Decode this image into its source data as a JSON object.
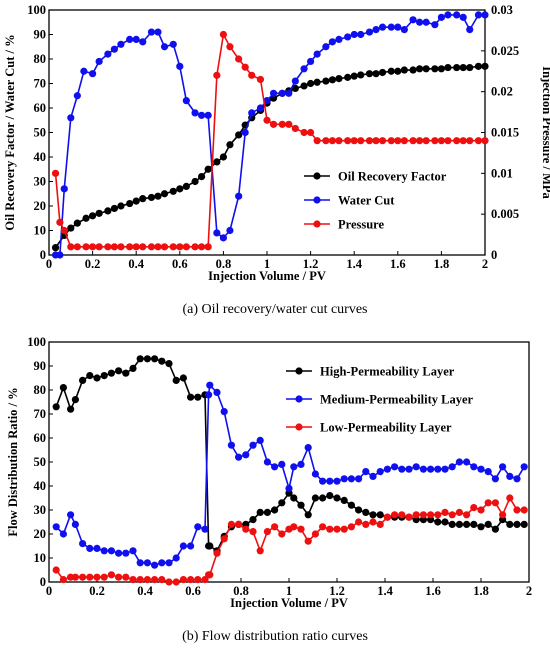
{
  "colors": {
    "black": "#000000",
    "blue": "#1010ee",
    "red": "#ee1010"
  },
  "chart_data": [
    {
      "type": "line",
      "caption": "(a) Oil recovery/water cut curves",
      "xlabel": "Injection Volume / PV",
      "ylabel": "Oil Recovery Factor / Water Cut / %",
      "y2label": "Injection Pressure / MPa",
      "xlim": [
        0,
        2
      ],
      "ylim": [
        0,
        100
      ],
      "y2lim": [
        0,
        0.03
      ],
      "xticks": [
        "0",
        "0.2",
        "0.4",
        "0.6",
        "0.8",
        "1",
        "1.2",
        "1.4",
        "1.6",
        "1.8",
        "2"
      ],
      "yticks": [
        "0",
        "10",
        "20",
        "30",
        "40",
        "50",
        "60",
        "70",
        "80",
        "90",
        "100"
      ],
      "y2ticks": [
        "0",
        "0.005",
        "0.01",
        "0.015",
        "0.02",
        "0.025",
        "0.03"
      ],
      "legend_position": "bottom-right",
      "series": [
        {
          "name": "Oil Recovery Factor",
          "axis": "left",
          "color": "#000000",
          "x": [
            0.03,
            0.07,
            0.1,
            0.13,
            0.17,
            0.2,
            0.23,
            0.27,
            0.3,
            0.33,
            0.37,
            0.4,
            0.43,
            0.47,
            0.5,
            0.53,
            0.57,
            0.6,
            0.63,
            0.67,
            0.7,
            0.73,
            0.77,
            0.8,
            0.83,
            0.87,
            0.9,
            0.93,
            0.97,
            1.0,
            1.03,
            1.07,
            1.1,
            1.13,
            1.17,
            1.2,
            1.23,
            1.27,
            1.3,
            1.33,
            1.37,
            1.4,
            1.43,
            1.47,
            1.5,
            1.53,
            1.57,
            1.6,
            1.63,
            1.67,
            1.7,
            1.73,
            1.77,
            1.8,
            1.83,
            1.87,
            1.9,
            1.93,
            1.97,
            2.0
          ],
          "values": [
            3,
            8,
            11,
            13,
            15,
            16,
            17,
            18,
            19,
            20,
            21,
            22,
            23,
            23.5,
            24,
            25,
            26,
            27,
            28,
            30,
            32,
            35,
            38,
            40,
            45,
            49,
            53,
            56,
            59,
            62,
            64,
            66,
            67,
            68,
            69,
            70,
            70.5,
            71,
            71.5,
            72,
            72.5,
            73,
            73.5,
            74,
            74,
            74.5,
            75,
            75,
            75.5,
            75.5,
            76,
            76,
            76,
            76,
            76.5,
            76.5,
            76.5,
            76.5,
            77,
            77
          ]
        },
        {
          "name": "Water Cut",
          "axis": "left",
          "color": "#1010ee",
          "x": [
            0.03,
            0.05,
            0.07,
            0.1,
            0.13,
            0.16,
            0.2,
            0.23,
            0.27,
            0.3,
            0.33,
            0.37,
            0.4,
            0.43,
            0.47,
            0.5,
            0.53,
            0.57,
            0.6,
            0.63,
            0.67,
            0.7,
            0.73,
            0.77,
            0.8,
            0.83,
            0.87,
            0.9,
            0.93,
            0.97,
            1.0,
            1.03,
            1.07,
            1.1,
            1.13,
            1.17,
            1.2,
            1.23,
            1.27,
            1.3,
            1.33,
            1.37,
            1.4,
            1.43,
            1.47,
            1.5,
            1.53,
            1.57,
            1.6,
            1.63,
            1.67,
            1.7,
            1.73,
            1.77,
            1.8,
            1.83,
            1.87,
            1.9,
            1.93,
            1.97,
            2.0
          ],
          "values": [
            0,
            0,
            27,
            56,
            65,
            75,
            74,
            79,
            82,
            84,
            86,
            88,
            88,
            87,
            91,
            91,
            85,
            86,
            77,
            63,
            58,
            57,
            57,
            9,
            7,
            10,
            24,
            50,
            58,
            60,
            63,
            66,
            66,
            66,
            71,
            76,
            79,
            82,
            85,
            87,
            88,
            89,
            90,
            90,
            91,
            92,
            93,
            93,
            93,
            92,
            96,
            95,
            95,
            94,
            97,
            98,
            98,
            97,
            92,
            98,
            98
          ]
        },
        {
          "name": "Pressure",
          "axis": "right",
          "color": "#ee1010",
          "x": [
            0.03,
            0.05,
            0.07,
            0.1,
            0.13,
            0.17,
            0.2,
            0.23,
            0.27,
            0.3,
            0.33,
            0.37,
            0.4,
            0.43,
            0.47,
            0.5,
            0.53,
            0.57,
            0.6,
            0.63,
            0.67,
            0.7,
            0.73,
            0.77,
            0.8,
            0.83,
            0.87,
            0.9,
            0.93,
            0.97,
            1.0,
            1.03,
            1.07,
            1.1,
            1.13,
            1.17,
            1.2,
            1.23,
            1.27,
            1.3,
            1.33,
            1.37,
            1.4,
            1.43,
            1.47,
            1.5,
            1.53,
            1.57,
            1.6,
            1.63,
            1.67,
            1.7,
            1.73,
            1.77,
            1.8,
            1.83,
            1.87,
            1.9,
            1.93,
            1.97,
            2.0
          ],
          "values": [
            0.01,
            0.004,
            0.003,
            0.001,
            0.001,
            0.001,
            0.001,
            0.001,
            0.001,
            0.001,
            0.001,
            0.001,
            0.001,
            0.001,
            0.001,
            0.001,
            0.001,
            0.001,
            0.001,
            0.001,
            0.001,
            0.001,
            0.001,
            0.022,
            0.027,
            0.0255,
            0.024,
            0.023,
            0.022,
            0.0215,
            0.0165,
            0.016,
            0.016,
            0.016,
            0.0155,
            0.015,
            0.015,
            0.014,
            0.014,
            0.014,
            0.014,
            0.014,
            0.014,
            0.014,
            0.014,
            0.014,
            0.014,
            0.014,
            0.014,
            0.014,
            0.014,
            0.014,
            0.014,
            0.014,
            0.014,
            0.014,
            0.014,
            0.014,
            0.014,
            0.014,
            0.014
          ]
        }
      ]
    },
    {
      "type": "line",
      "caption": "(b) Flow distribution ratio curves",
      "xlabel": "Injection Volume / PV",
      "ylabel": "Flow Distribution Ratio / %",
      "xlim": [
        0,
        2
      ],
      "ylim": [
        0,
        100
      ],
      "xticks": [
        "0",
        "0.2",
        "0.4",
        "0.6",
        "0.8",
        "1",
        "1.2",
        "1.4",
        "1.6",
        "1.8",
        "2"
      ],
      "yticks": [
        "0",
        "10",
        "20",
        "30",
        "40",
        "50",
        "60",
        "70",
        "80",
        "90",
        "100"
      ],
      "legend_position": "top-right",
      "series": [
        {
          "name": "High-Permeability Layer",
          "color": "#000000",
          "x": [
            0.03,
            0.06,
            0.09,
            0.11,
            0.14,
            0.17,
            0.2,
            0.23,
            0.26,
            0.29,
            0.32,
            0.35,
            0.38,
            0.41,
            0.44,
            0.47,
            0.5,
            0.53,
            0.56,
            0.59,
            0.62,
            0.65,
            0.665,
            0.67,
            0.7,
            0.73,
            0.76,
            0.79,
            0.82,
            0.85,
            0.88,
            0.91,
            0.94,
            0.97,
            1.0,
            1.02,
            1.05,
            1.08,
            1.11,
            1.14,
            1.17,
            1.2,
            1.23,
            1.26,
            1.29,
            1.32,
            1.35,
            1.38,
            1.41,
            1.44,
            1.47,
            1.5,
            1.53,
            1.56,
            1.59,
            1.62,
            1.65,
            1.68,
            1.71,
            1.74,
            1.77,
            1.8,
            1.83,
            1.86,
            1.89,
            1.92,
            1.95,
            1.98
          ],
          "values": [
            73,
            81,
            72,
            76,
            84,
            86,
            85,
            86,
            87,
            88,
            87,
            89,
            93,
            93,
            93,
            92,
            91,
            84,
            85,
            77,
            77,
            78,
            15,
            15,
            13,
            19,
            23,
            24,
            24,
            26,
            29,
            29,
            30,
            33,
            37,
            35,
            32,
            28,
            35,
            35,
            36,
            35,
            34,
            32,
            30,
            29,
            28,
            28,
            27,
            27,
            27,
            27,
            26,
            26,
            26,
            25,
            25,
            24,
            24,
            24,
            24,
            23,
            24,
            22,
            26,
            24,
            24,
            24
          ]
        },
        {
          "name": "Medium-Permeability Layer",
          "color": "#1010ee",
          "x": [
            0.03,
            0.06,
            0.09,
            0.11,
            0.14,
            0.17,
            0.2,
            0.23,
            0.26,
            0.29,
            0.32,
            0.35,
            0.38,
            0.41,
            0.44,
            0.47,
            0.5,
            0.53,
            0.56,
            0.59,
            0.62,
            0.65,
            0.665,
            0.67,
            0.7,
            0.73,
            0.76,
            0.79,
            0.82,
            0.85,
            0.88,
            0.91,
            0.94,
            0.97,
            1.0,
            1.02,
            1.05,
            1.08,
            1.11,
            1.14,
            1.17,
            1.2,
            1.23,
            1.26,
            1.29,
            1.32,
            1.35,
            1.38,
            1.41,
            1.44,
            1.47,
            1.5,
            1.53,
            1.56,
            1.59,
            1.62,
            1.65,
            1.68,
            1.71,
            1.74,
            1.77,
            1.8,
            1.83,
            1.86,
            1.89,
            1.92,
            1.95,
            1.98
          ],
          "values": [
            23,
            20,
            28,
            24,
            16,
            14,
            14,
            13,
            13,
            12,
            12,
            13,
            8,
            8,
            7,
            8,
            8,
            10,
            15,
            15,
            23,
            22,
            78,
            82,
            79,
            71,
            57,
            52,
            53,
            57,
            59,
            50,
            48,
            49,
            39,
            48,
            49,
            56,
            45,
            42,
            42,
            42,
            43,
            43,
            43,
            46,
            44,
            46,
            47,
            48,
            47,
            47,
            48,
            47,
            47,
            47,
            47,
            48,
            50,
            50,
            48,
            47,
            46,
            43,
            48,
            44,
            43,
            48
          ]
        },
        {
          "name": "Low-Permeability Layer",
          "color": "#ee1010",
          "x": [
            0.03,
            0.06,
            0.09,
            0.11,
            0.14,
            0.17,
            0.2,
            0.23,
            0.26,
            0.29,
            0.32,
            0.35,
            0.38,
            0.41,
            0.44,
            0.47,
            0.5,
            0.53,
            0.56,
            0.59,
            0.62,
            0.65,
            0.665,
            0.67,
            0.7,
            0.73,
            0.76,
            0.79,
            0.82,
            0.85,
            0.88,
            0.91,
            0.94,
            0.97,
            1.0,
            1.02,
            1.05,
            1.08,
            1.11,
            1.14,
            1.17,
            1.2,
            1.23,
            1.26,
            1.29,
            1.32,
            1.35,
            1.38,
            1.41,
            1.44,
            1.47,
            1.5,
            1.53,
            1.56,
            1.59,
            1.62,
            1.65,
            1.68,
            1.71,
            1.74,
            1.77,
            1.8,
            1.83,
            1.86,
            1.89,
            1.92,
            1.95,
            1.98
          ],
          "values": [
            5,
            1,
            2,
            2,
            2,
            2,
            2,
            2,
            3,
            2,
            2,
            1,
            1,
            1,
            1,
            1,
            0,
            0,
            1,
            1,
            1,
            1,
            3,
            3,
            12,
            18,
            24,
            24,
            22,
            21,
            13,
            21,
            23,
            20,
            22,
            23,
            22,
            17,
            20,
            23,
            22,
            22,
            22,
            23,
            25,
            24,
            25,
            24,
            27,
            28,
            28,
            27,
            28,
            28,
            28,
            28,
            29,
            28,
            29,
            28,
            31,
            30,
            33,
            33,
            28,
            35,
            30,
            30
          ]
        }
      ]
    }
  ]
}
